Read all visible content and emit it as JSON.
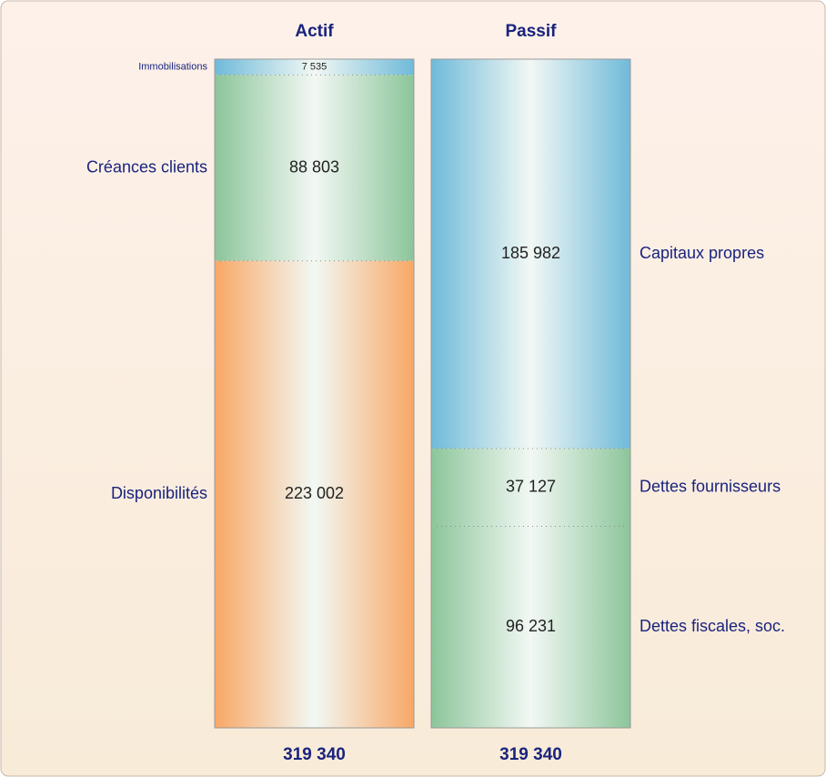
{
  "chart_data": {
    "type": "balance-sheet",
    "columns": [
      {
        "name": "Actif",
        "total": 319340,
        "total_label": "319 340",
        "segments": [
          {
            "name": "Immobilisations",
            "value": 7535,
            "value_label": "7 535",
            "color": "#6fbad9"
          },
          {
            "name": "Créances clients",
            "value": 88803,
            "value_label": "88 803",
            "color": "#8cc59a"
          },
          {
            "name": "Disponibilités",
            "value": 223002,
            "value_label": "223 002",
            "color": "#f8a765"
          }
        ]
      },
      {
        "name": "Passif",
        "total": 319340,
        "total_label": "319 340",
        "segments": [
          {
            "name": "Capitaux propres",
            "value": 185982,
            "value_label": "185 982",
            "color": "#6fbad9"
          },
          {
            "name": "Dettes fournisseurs",
            "value": 37127,
            "value_label": "37 127",
            "color": "#8cc59a"
          },
          {
            "name": "Dettes fiscales, soc.",
            "value": 96231,
            "value_label": "96 231",
            "color": "#8cc59a"
          }
        ]
      }
    ]
  }
}
